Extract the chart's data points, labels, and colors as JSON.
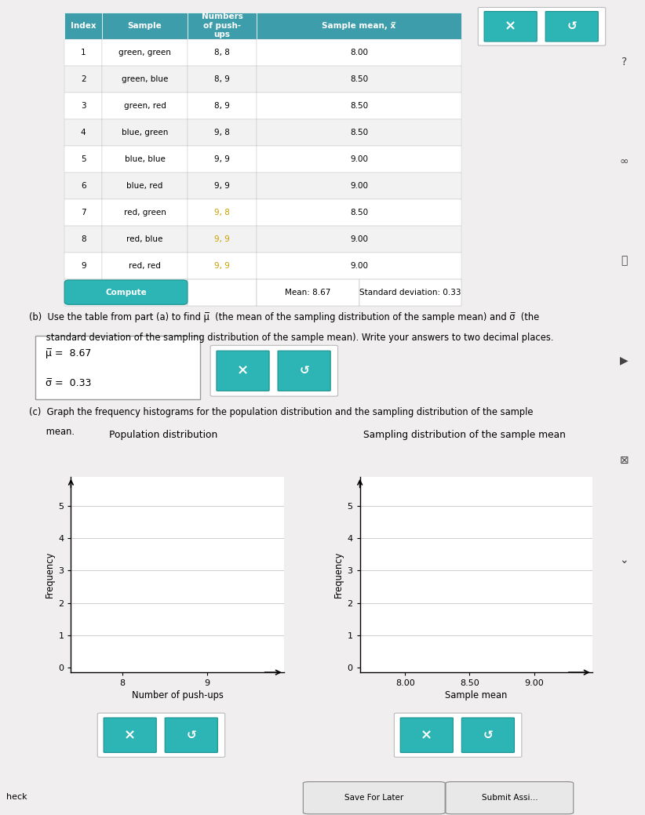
{
  "table_rows": [
    [
      "1",
      "green, green",
      "8, 8",
      "8.00"
    ],
    [
      "2",
      "green, blue",
      "8, 9",
      "8.50"
    ],
    [
      "3",
      "green, red",
      "8, 9",
      "8.50"
    ],
    [
      "4",
      "blue, green",
      "9, 8",
      "8.50"
    ],
    [
      "5",
      "blue, blue",
      "9, 9",
      "9.00"
    ],
    [
      "6",
      "blue, red",
      "9, 9",
      "9.00"
    ],
    [
      "7",
      "red, green",
      "9, 8",
      "8.50"
    ],
    [
      "8",
      "red, blue",
      "9, 9",
      "9.00"
    ],
    [
      "9",
      "red, red",
      "9, 9",
      "9.00"
    ]
  ],
  "mean_text": "Mean: 8.67",
  "std_text": "Standard deviation: 0.33",
  "mu_text": "μ̅ = 8.67",
  "sigma_text": "σ̅ = 0.33",
  "pop_title": "Population distribution",
  "pop_xlabel": "Number of push-ups",
  "pop_ylabel": "Frequency",
  "samp_title": "Sampling distribution of the sample mean",
  "samp_xlabel": "Sample mean",
  "samp_ylabel": "Frequency",
  "header_bg": "#3d9daa",
  "row_bg_even": "#f2f2f2",
  "row_bg_odd": "#ffffff",
  "highlight_color": "#c8a000",
  "button_teal": "#2db5b5",
  "bg_color": "#f0eeee",
  "table_border": "#aaaaaa",
  "grid_color": "#bbbbbb",
  "sidebar_bg": "#f0eeee"
}
